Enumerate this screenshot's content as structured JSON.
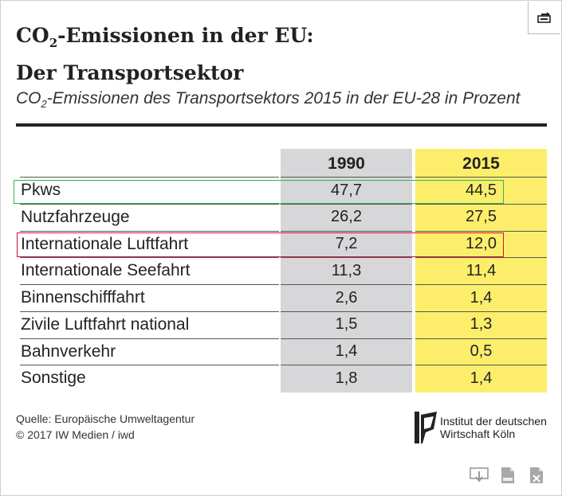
{
  "header": {
    "title_line1_prefix": "CO",
    "title_line1_sub": "2",
    "title_line1_suffix": "-Emissionen in der EU:",
    "title_line2": "Der Transportsektor",
    "subtitle_prefix": "CO",
    "subtitle_sub": "2",
    "subtitle_suffix": "-Emissionen des Transportsektors 2015 in der EU-28 in Prozent"
  },
  "chart_data": {
    "type": "table",
    "title": "CO2-Emissionen in der EU: Der Transportsektor",
    "subtitle": "CO2-Emissionen des Transportsektors 2015 in der EU-28 in Prozent",
    "columns": [
      "1990",
      "2015"
    ],
    "rows": [
      {
        "label": "Pkws",
        "values": [
          "47,7",
          "44,5"
        ]
      },
      {
        "label": "Nutzfahrzeuge",
        "values": [
          "26,2",
          "27,5"
        ]
      },
      {
        "label": "Internationale Luftfahrt",
        "values": [
          "7,2",
          "12,0"
        ]
      },
      {
        "label": "Internationale Seefahrt",
        "values": [
          "11,3",
          "11,4"
        ]
      },
      {
        "label": "Binnenschifffahrt",
        "values": [
          "2,6",
          "1,4"
        ]
      },
      {
        "label": "Zivile Luftfahrt national",
        "values": [
          "1,5",
          "1,3"
        ]
      },
      {
        "label": "Bahnverkehr",
        "values": [
          "1,4",
          "0,5"
        ]
      },
      {
        "label": "Sonstige",
        "values": [
          "1,8",
          "1,4"
        ]
      }
    ],
    "highlighted_rows": {
      "green": "Pkws",
      "red": "Internationale Luftfahrt"
    },
    "colors": {
      "col_1990": "#d7d7d9",
      "col_2015": "#fcee6a",
      "highlight_green": "#2fb34f",
      "highlight_red": "#d0103a"
    }
  },
  "footer": {
    "source_line1": "Quelle: Europäische Umweltagentur",
    "source_line2": "© 2017 IW Medien / iwd",
    "logo_line1": "Institut der deutschen",
    "logo_line2": "Wirtschaft Köln"
  },
  "icons": {
    "corner": "share-icon",
    "downloads": [
      "download-icon",
      "csv-file-icon",
      "excel-file-icon"
    ]
  }
}
